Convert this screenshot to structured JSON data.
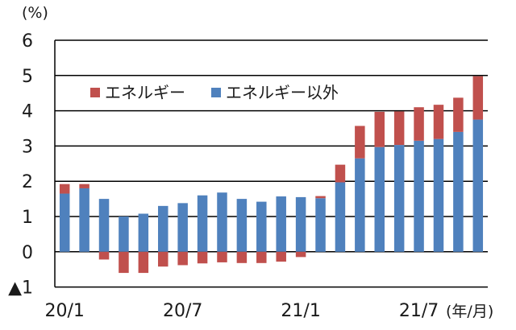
{
  "chart_data": {
    "type": "bar",
    "stacked": true,
    "ylabel": "(%)",
    "xunit": "(年/月)",
    "ylim": [
      -1,
      6
    ],
    "yticks": [
      6,
      5,
      4,
      3,
      2,
      1,
      0,
      -1
    ],
    "ytick_labels": [
      "6",
      "5",
      "4",
      "3",
      "2",
      "1",
      "0",
      "▲1"
    ],
    "x_tick_labels": [
      {
        "index": 0,
        "label": "20/1"
      },
      {
        "index": 6,
        "label": "20/7"
      },
      {
        "index": 12,
        "label": "21/1"
      },
      {
        "index": 18,
        "label": "21/7"
      }
    ],
    "grid": true,
    "legend_position": "top-left",
    "series": [
      {
        "name": "エネルギー以外",
        "color": "#4f81bd",
        "values": [
          1.65,
          1.8,
          1.5,
          1.0,
          1.08,
          1.3,
          1.38,
          1.6,
          1.68,
          1.5,
          1.42,
          1.57,
          1.55,
          1.52,
          1.97,
          2.65,
          2.97,
          3.03,
          3.15,
          3.2,
          3.4,
          3.75
        ]
      },
      {
        "name": "エネルギー",
        "color": "#c0504d",
        "values": [
          0.27,
          0.12,
          -0.22,
          -0.6,
          -0.6,
          -0.42,
          -0.38,
          -0.33,
          -0.3,
          -0.32,
          -0.32,
          -0.28,
          -0.15,
          0.06,
          0.5,
          0.92,
          1.0,
          0.95,
          0.95,
          0.97,
          0.97,
          1.23
        ]
      }
    ]
  }
}
